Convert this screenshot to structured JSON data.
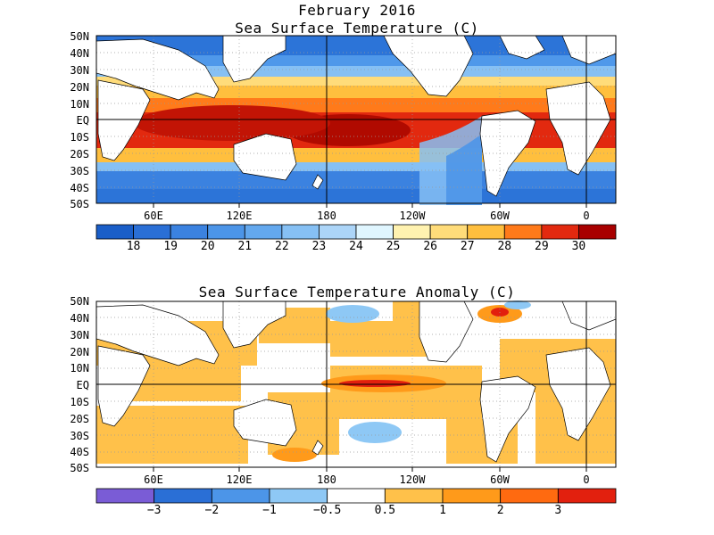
{
  "header": {
    "title": "February 2016"
  },
  "panels": [
    {
      "title": "Sea Surface Temperature (C)",
      "lat_labels": [
        "50N",
        "40N",
        "30N",
        "20N",
        "10N",
        "EQ",
        "10S",
        "20S",
        "30S",
        "40S",
        "50S"
      ],
      "lon_labels": [
        "60E",
        "120E",
        "180",
        "120W",
        "60W",
        "0"
      ],
      "colorbar": {
        "labels": [
          "18",
          "19",
          "20",
          "21",
          "22",
          "23",
          "24",
          "25",
          "26",
          "27",
          "28",
          "29",
          "30"
        ],
        "colors": [
          "#1a5ec8",
          "#2a6fd6",
          "#3b82e0",
          "#4c95e8",
          "#63a8ee",
          "#86c0f4",
          "#acd5f8",
          "#e0f6ff",
          "#fff2b0",
          "#ffdc7a",
          "#ffbf3e",
          "#ff7a1a",
          "#e2290f",
          "#a80000"
        ]
      }
    },
    {
      "title": "Sea Surface Temperature Anomaly (C)",
      "lat_labels": [
        "50N",
        "40N",
        "30N",
        "20N",
        "10N",
        "EQ",
        "10S",
        "20S",
        "30S",
        "40S",
        "50S"
      ],
      "lon_labels": [
        "60E",
        "120E",
        "180",
        "120W",
        "60W",
        "0"
      ],
      "colorbar": {
        "labels": [
          "−3",
          "−2",
          "−1",
          "−0.5",
          "0.5",
          "1",
          "2",
          "3"
        ],
        "colors": [
          "#7a5cd6",
          "#2a6fd6",
          "#4c95e8",
          "#8ec8f5",
          "#ffffff",
          "#ffc14a",
          "#ff9a1a",
          "#ff6a10",
          "#e2200e"
        ]
      }
    }
  ]
}
